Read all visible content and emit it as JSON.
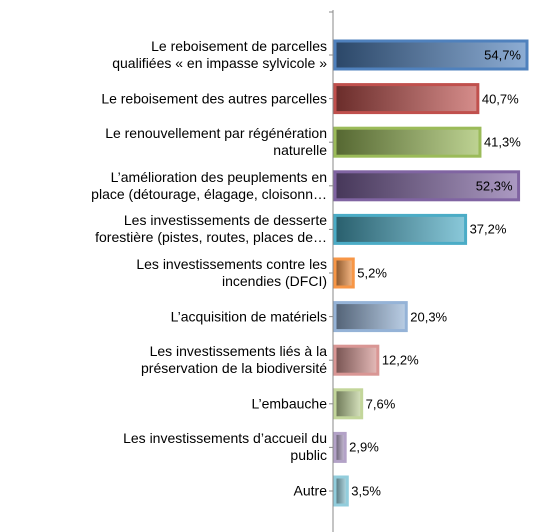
{
  "chart_data": {
    "type": "bar",
    "orientation": "horizontal",
    "categories": [
      "Le reboisement de parcelles\nqualifiées « en impasse sylvicole »",
      "Le reboisement des autres parcelles",
      "Le renouvellement par régénération\nnaturelle",
      "L’amélioration des peuplements en\nplace (détourage, élagage, cloisonn…",
      "Les investissements de desserte\nforestière (pistes, routes, places de…",
      "Les investissements contre les\nincendies (DFCI)",
      "L’acquisition de matériels",
      "Les investissements liés à la\npréservation de la biodiversité",
      "L’embauche",
      "Les investissements d’accueil du\npublic",
      "Autre"
    ],
    "values": [
      54.7,
      40.7,
      41.3,
      52.3,
      37.2,
      5.2,
      20.3,
      12.2,
      7.6,
      2.9,
      3.5
    ],
    "value_labels": [
      "54,7%",
      "40,7%",
      "41,3%",
      "52,3%",
      "37,2%",
      "5,2%",
      "20,3%",
      "12,2%",
      "7,6%",
      "2,9%",
      "3,5%"
    ],
    "colors": [
      "#4f81bd",
      "#c0504d",
      "#9bbb59",
      "#8064a2",
      "#4bacc6",
      "#f79646",
      "#95b3d7",
      "#d99694",
      "#c3d69b",
      "#b3a2c7",
      "#92cddc"
    ]
  }
}
